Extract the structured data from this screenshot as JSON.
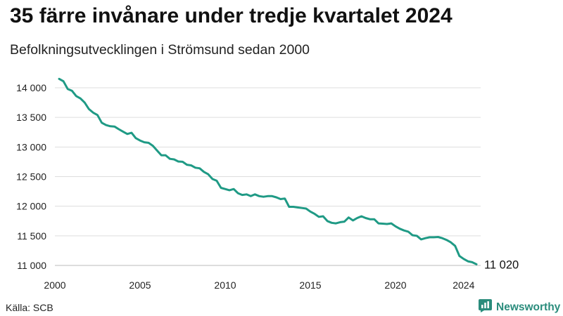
{
  "header": {
    "title": "35 färre invånare under tredje kvartalet 2024",
    "subtitle": "Befolkningsutvecklingen i Strömsund sedan 2000"
  },
  "footer": {
    "source": "Källa: SCB",
    "brand": "Newsworthy"
  },
  "icons": {
    "brand_logo": "newsworthy-logo-icon"
  },
  "colors": {
    "line": "#1f9a85",
    "grid": "#dddddd",
    "brand": "#2a8c7c"
  },
  "chart_data": {
    "type": "line",
    "title": "35 färre invånare under tredje kvartalet 2024",
    "subtitle": "Befolkningsutvecklingen i Strömsund sedan 2000",
    "xlabel": "",
    "ylabel": "",
    "xlim": [
      2000,
      2025
    ],
    "ylim": [
      11000,
      14000
    ],
    "grid": "horizontal",
    "x_ticks": [
      {
        "value": 2000,
        "label": "2000"
      },
      {
        "value": 2005,
        "label": "2005"
      },
      {
        "value": 2010,
        "label": "2010"
      },
      {
        "value": 2015,
        "label": "2015"
      },
      {
        "value": 2020,
        "label": "2020"
      },
      {
        "value": 2024,
        "label": "2024"
      }
    ],
    "y_ticks": [
      {
        "value": 11000,
        "label": "11 000"
      },
      {
        "value": 11500,
        "label": "11 500"
      },
      {
        "value": 12000,
        "label": "12 000"
      },
      {
        "value": 12500,
        "label": "12 500"
      },
      {
        "value": 13000,
        "label": "13 000"
      },
      {
        "value": 13500,
        "label": "13 500"
      },
      {
        "value": 14000,
        "label": "14 000"
      }
    ],
    "end_label": "11 020",
    "series": [
      {
        "points": [
          [
            2000.25,
            14150
          ],
          [
            2000.5,
            14110
          ],
          [
            2000.75,
            13980
          ],
          [
            2001.0,
            13950
          ],
          [
            2001.25,
            13860
          ],
          [
            2001.5,
            13820
          ],
          [
            2001.75,
            13750
          ],
          [
            2002.0,
            13640
          ],
          [
            2002.25,
            13580
          ],
          [
            2002.5,
            13540
          ],
          [
            2002.75,
            13410
          ],
          [
            2003.0,
            13370
          ],
          [
            2003.25,
            13350
          ],
          [
            2003.5,
            13345
          ],
          [
            2003.75,
            13300
          ],
          [
            2004.0,
            13260
          ],
          [
            2004.25,
            13220
          ],
          [
            2004.5,
            13240
          ],
          [
            2004.75,
            13150
          ],
          [
            2005.0,
            13110
          ],
          [
            2005.25,
            13080
          ],
          [
            2005.5,
            13070
          ],
          [
            2005.75,
            13020
          ],
          [
            2006.0,
            12940
          ],
          [
            2006.25,
            12860
          ],
          [
            2006.5,
            12860
          ],
          [
            2006.75,
            12800
          ],
          [
            2007.0,
            12790
          ],
          [
            2007.25,
            12755
          ],
          [
            2007.5,
            12750
          ],
          [
            2007.75,
            12700
          ],
          [
            2008.0,
            12690
          ],
          [
            2008.25,
            12650
          ],
          [
            2008.5,
            12640
          ],
          [
            2008.75,
            12580
          ],
          [
            2009.0,
            12540
          ],
          [
            2009.25,
            12460
          ],
          [
            2009.5,
            12430
          ],
          [
            2009.75,
            12310
          ],
          [
            2010.0,
            12290
          ],
          [
            2010.25,
            12270
          ],
          [
            2010.5,
            12290
          ],
          [
            2010.75,
            12220
          ],
          [
            2011.0,
            12190
          ],
          [
            2011.25,
            12200
          ],
          [
            2011.5,
            12170
          ],
          [
            2011.75,
            12200
          ],
          [
            2012.0,
            12170
          ],
          [
            2012.25,
            12160
          ],
          [
            2012.5,
            12170
          ],
          [
            2012.75,
            12170
          ],
          [
            2013.0,
            12150
          ],
          [
            2013.25,
            12120
          ],
          [
            2013.5,
            12130
          ],
          [
            2013.75,
            11990
          ],
          [
            2014.0,
            11990
          ],
          [
            2014.25,
            11980
          ],
          [
            2014.5,
            11970
          ],
          [
            2014.75,
            11960
          ],
          [
            2015.0,
            11910
          ],
          [
            2015.25,
            11870
          ],
          [
            2015.5,
            11820
          ],
          [
            2015.75,
            11830
          ],
          [
            2016.0,
            11750
          ],
          [
            2016.25,
            11720
          ],
          [
            2016.5,
            11710
          ],
          [
            2016.75,
            11730
          ],
          [
            2017.0,
            11740
          ],
          [
            2017.25,
            11810
          ],
          [
            2017.5,
            11760
          ],
          [
            2017.75,
            11800
          ],
          [
            2018.0,
            11830
          ],
          [
            2018.25,
            11800
          ],
          [
            2018.5,
            11780
          ],
          [
            2018.75,
            11780
          ],
          [
            2019.0,
            11710
          ],
          [
            2019.25,
            11705
          ],
          [
            2019.5,
            11700
          ],
          [
            2019.75,
            11710
          ],
          [
            2020.0,
            11660
          ],
          [
            2020.25,
            11620
          ],
          [
            2020.5,
            11590
          ],
          [
            2020.75,
            11570
          ],
          [
            2021.0,
            11510
          ],
          [
            2021.25,
            11500
          ],
          [
            2021.5,
            11440
          ],
          [
            2021.75,
            11460
          ],
          [
            2022.0,
            11475
          ],
          [
            2022.25,
            11475
          ],
          [
            2022.5,
            11480
          ],
          [
            2022.75,
            11460
          ],
          [
            2023.0,
            11430
          ],
          [
            2023.25,
            11390
          ],
          [
            2023.5,
            11330
          ],
          [
            2023.75,
            11160
          ],
          [
            2024.0,
            11110
          ],
          [
            2024.25,
            11070
          ],
          [
            2024.5,
            11055
          ],
          [
            2024.75,
            11020
          ]
        ]
      }
    ]
  }
}
